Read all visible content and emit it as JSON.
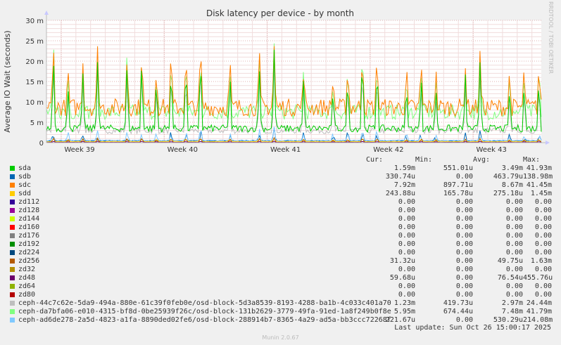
{
  "chart_data": {
    "type": "line",
    "title": "Disk latency per device - by month",
    "ylabel": "Average IO Wait (seconds)",
    "xlabel": "",
    "ylim": [
      0,
      30
    ],
    "yticks": [
      "0",
      "5 m",
      "10 m",
      "15 m",
      "20 m",
      "25 m",
      "30 m"
    ],
    "xticks": [
      "Week 39",
      "Week 40",
      "Week 41",
      "Week 42",
      "Week 43"
    ],
    "grid": true,
    "vertical_text": "RRDTOOL / TOBI OETIKER",
    "headers": [
      "Cur:",
      "Min:",
      "Avg:",
      "Max:"
    ],
    "last_update": "Last update: Sun Oct 26 15:00:17 2025",
    "footer": "Munin 2.0.67",
    "series": [
      {
        "name": "sda",
        "color": "#00cc00",
        "cur": "1.59m",
        "min": "551.01u",
        "avg": "3.49m",
        "max": "41.93m"
      },
      {
        "name": "sdb",
        "color": "#0066b3",
        "cur": "330.74u",
        "min": "0.00",
        "avg": "463.79u",
        "max": "138.98m"
      },
      {
        "name": "sdc",
        "color": "#ff8000",
        "cur": "7.92m",
        "min": "897.71u",
        "avg": "8.67m",
        "max": "41.45m"
      },
      {
        "name": "sdd",
        "color": "#ffcc00",
        "cur": "243.88u",
        "min": "165.78u",
        "avg": "275.18u",
        "max": "1.45m"
      },
      {
        "name": "zd112",
        "color": "#330099",
        "cur": "0.00",
        "min": "0.00",
        "avg": "0.00",
        "max": "0.00"
      },
      {
        "name": "zd128",
        "color": "#990099",
        "cur": "0.00",
        "min": "0.00",
        "avg": "0.00",
        "max": "0.00"
      },
      {
        "name": "zd144",
        "color": "#ccff00",
        "cur": "0.00",
        "min": "0.00",
        "avg": "0.00",
        "max": "0.00"
      },
      {
        "name": "zd160",
        "color": "#ff0000",
        "cur": "0.00",
        "min": "0.00",
        "avg": "0.00",
        "max": "0.00"
      },
      {
        "name": "zd176",
        "color": "#808080",
        "cur": "0.00",
        "min": "0.00",
        "avg": "0.00",
        "max": "0.00"
      },
      {
        "name": "zd192",
        "color": "#008f00",
        "cur": "0.00",
        "min": "0.00",
        "avg": "0.00",
        "max": "0.00"
      },
      {
        "name": "zd224",
        "color": "#00487d",
        "cur": "0.00",
        "min": "0.00",
        "avg": "0.00",
        "max": "0.00"
      },
      {
        "name": "zd256",
        "color": "#b35a00",
        "cur": "31.32u",
        "min": "0.00",
        "avg": "49.75u",
        "max": "1.63m"
      },
      {
        "name": "zd32",
        "color": "#b38f00",
        "cur": "0.00",
        "min": "0.00",
        "avg": "0.00",
        "max": "0.00"
      },
      {
        "name": "zd48",
        "color": "#6b006b",
        "cur": "59.68u",
        "min": "0.00",
        "avg": "76.54u",
        "max": "455.76u"
      },
      {
        "name": "zd64",
        "color": "#8fb300",
        "cur": "0.00",
        "min": "0.00",
        "avg": "0.00",
        "max": "0.00"
      },
      {
        "name": "zd80",
        "color": "#b30000",
        "cur": "0.00",
        "min": "0.00",
        "avg": "0.00",
        "max": "0.00"
      },
      {
        "name": "ceph-44c7c62e-5da9-494a-880e-61c39f0feb0e/osd-block-5d3a8539-8193-4288-ba1b-4c033c401a70",
        "color": "#bebebe",
        "cur": "1.23m",
        "min": "419.73u",
        "avg": "2.97m",
        "max": "24.44m"
      },
      {
        "name": "ceph-da7bfa06-e010-4315-bf8d-0be25939f26c/osd-block-131b2629-3779-49fa-91ed-1a8f249b0f8e",
        "color": "#80ff80",
        "cur": "5.95m",
        "min": "674.44u",
        "avg": "7.48m",
        "max": "41.79m"
      },
      {
        "name": "ceph-ad6de278-2a5d-4823-a1fa-8890ded02fe6/osd-block-288914b7-8365-4a29-ad5a-bb3ccc72268f",
        "color": "#80c9ff",
        "cur": "221.67u",
        "min": "0.00",
        "avg": "530.29u",
        "max": "214.08m"
      }
    ]
  }
}
